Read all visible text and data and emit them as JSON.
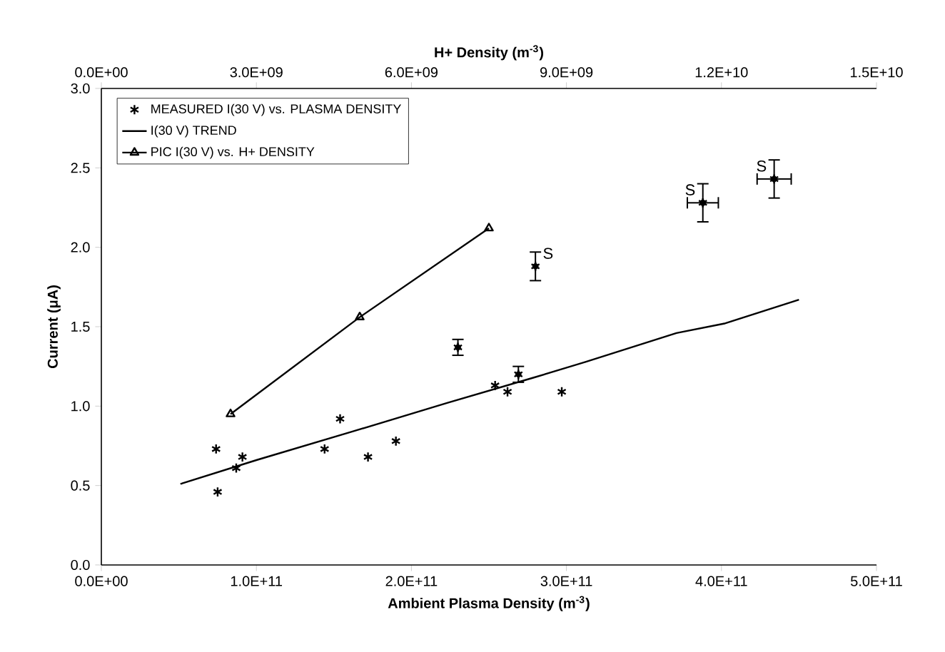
{
  "chart_data": {
    "type": "scatter",
    "xlabel": "Ambient Plasma Density  (m$^{-3}$)",
    "ylabel": "Current  (μA)",
    "x2label": "H+  Density  (m$^{-3}$)",
    "xlim": [
      0,
      500000000000.0
    ],
    "xticks": [
      {
        "value": 0,
        "label": "0.0E+00"
      },
      {
        "value": 100000000000.0,
        "label": "1.0E+11"
      },
      {
        "value": 200000000000.0,
        "label": "2.0E+11"
      },
      {
        "value": 300000000000.0,
        "label": "3.0E+11"
      },
      {
        "value": 400000000000.0,
        "label": "4.0E+11"
      },
      {
        "value": 500000000000.0,
        "label": "5.0E+11"
      }
    ],
    "x2lim": [
      0,
      15000000000.0
    ],
    "x2ticks": [
      {
        "value": 0,
        "label": "0.0E+00"
      },
      {
        "value": 3000000000.0,
        "label": "3.0E+09"
      },
      {
        "value": 6000000000.0,
        "label": "6.0E+09"
      },
      {
        "value": 9000000000.0,
        "label": "9.0E+09"
      },
      {
        "value": 12000000000.0,
        "label": "1.2E+10"
      },
      {
        "value": 15000000000.0,
        "label": "1.5E+10"
      }
    ],
    "ylim": [
      0,
      3
    ],
    "yticks": [
      {
        "value": 0,
        "label": "0.0"
      },
      {
        "value": 0.5,
        "label": "0.5"
      },
      {
        "value": 1,
        "label": "1.0"
      },
      {
        "value": 1.5,
        "label": "1.5"
      },
      {
        "value": 2,
        "label": "2.0"
      },
      {
        "value": 2.5,
        "label": "2.5"
      },
      {
        "value": 3,
        "label": "3.0"
      }
    ],
    "legend": "top left",
    "grid": false,
    "series": [
      {
        "name": "MEASURED I(30 V) vs. PLASMA DENSITY",
        "marker": "cross",
        "color": "#000000",
        "x": [
          74000000000.0,
          75000000000.0,
          87000000000.0,
          91000000000.0,
          144000000000.0,
          154000000000.0,
          172000000000.0,
          190000000000.0,
          230000000000.0,
          254000000000.0,
          262000000000.0,
          269000000000.0,
          280000000000.0,
          297000000000.0,
          388000000000.0,
          434000000000.0
        ],
        "values": [
          0.73,
          0.46,
          0.61,
          0.68,
          0.73,
          0.92,
          0.68,
          0.78,
          1.37,
          1.13,
          1.09,
          1.2,
          1.88,
          1.09,
          2.28,
          2.43
        ],
        "errors": [
          null,
          null,
          null,
          null,
          null,
          null,
          null,
          null,
          0.05,
          null,
          null,
          0.05,
          0.09,
          null,
          0.12,
          0.12
        ],
        "xerrors": [
          null,
          null,
          null,
          null,
          null,
          null,
          null,
          null,
          null,
          null,
          null,
          null,
          null,
          null,
          10000000000.0,
          11000000000.0
        ]
      },
      {
        "name": "I(30 V) TREND",
        "type": "line",
        "marker": "none",
        "line_style": "solid",
        "color": "#000000",
        "x": [
          51000000000.0,
          100000000000.0,
          162000000000.0,
          223000000000.0,
          279000000000.0,
          313000000000.0,
          371000000000.0,
          402000000000.0,
          450000000000.0
        ],
        "values": [
          0.51,
          0.66,
          0.84,
          1.02,
          1.18,
          1.28,
          1.46,
          1.52,
          1.67
        ]
      },
      {
        "name": "PIC I(30 V) vs. H+ DENSITY",
        "type": "line",
        "axis": "x2",
        "marker": "triangle",
        "line_style": "solid",
        "color": "#000000",
        "x": [
          2500000000.0,
          5000000000.0,
          7500000000.0
        ],
        "values": [
          0.95,
          1.56,
          2.12
        ]
      }
    ],
    "annotations": [
      {
        "text": "S",
        "x": 280000000000.0,
        "y": 1.88
      },
      {
        "text": "S",
        "x": 388000000000.0,
        "y": 2.28
      },
      {
        "text": "S",
        "x": 434000000000.0,
        "y": 2.43
      }
    ]
  }
}
